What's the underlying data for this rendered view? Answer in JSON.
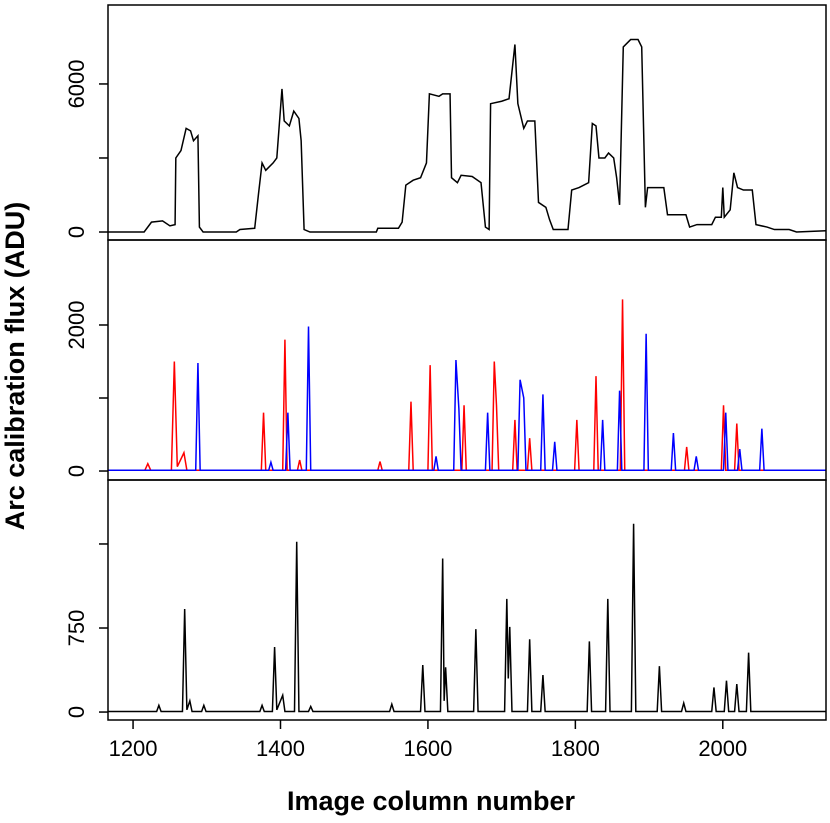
{
  "chart_data": [
    {
      "type": "line",
      "xlim": [
        1166,
        2140
      ],
      "ylim": [
        -324,
        9200
      ],
      "yticks": [
        0,
        6000
      ],
      "unlabeled_yticks": [
        3000
      ],
      "series": [
        {
          "color": "#000000",
          "x": [
            1166,
            1215,
            1225,
            1240,
            1250,
            1257,
            1258,
            1265,
            1272,
            1278,
            1282,
            1288,
            1290,
            1295,
            1340,
            1345,
            1365,
            1370,
            1375,
            1380,
            1390,
            1395,
            1402,
            1405,
            1412,
            1418,
            1425,
            1428,
            1432,
            1440,
            1530,
            1532,
            1560,
            1565,
            1570,
            1580,
            1590,
            1598,
            1602,
            1615,
            1620,
            1630,
            1632,
            1640,
            1645,
            1660,
            1672,
            1678,
            1683,
            1685,
            1700,
            1710,
            1718,
            1722,
            1730,
            1735,
            1745,
            1750,
            1760,
            1765,
            1770,
            1790,
            1795,
            1805,
            1818,
            1823,
            1828,
            1832,
            1840,
            1845,
            1852,
            1856,
            1860,
            1865,
            1875,
            1885,
            1890,
            1895,
            1898,
            1920,
            1925,
            1950,
            1955,
            1965,
            1985,
            1990,
            1998,
            2000,
            2002,
            2010,
            2015,
            2020,
            2028,
            2040,
            2045,
            2060,
            2070,
            2090,
            2100,
            2140
          ],
          "values": [
            0,
            0,
            400,
            450,
            250,
            300,
            3000,
            3300,
            4200,
            4100,
            3700,
            3900,
            200,
            0,
            0,
            100,
            150,
            1500,
            2800,
            2500,
            2800,
            3000,
            5800,
            4500,
            4300,
            4900,
            4600,
            3700,
            100,
            0,
            0,
            150,
            150,
            400,
            1900,
            2100,
            2200,
            2800,
            5600,
            5500,
            5600,
            5600,
            2200,
            2000,
            2300,
            2250,
            2000,
            200,
            100,
            5200,
            5300,
            5400,
            7600,
            5200,
            4200,
            4500,
            4500,
            1200,
            1000,
            500,
            100,
            100,
            1700,
            1800,
            2000,
            4400,
            4300,
            3000,
            3000,
            3200,
            3000,
            2200,
            1100,
            7500,
            7800,
            7800,
            7500,
            1000,
            1800,
            1800,
            700,
            700,
            200,
            300,
            300,
            600,
            600,
            1800,
            600,
            900,
            2400,
            1800,
            1700,
            1700,
            300,
            200,
            100,
            100,
            0,
            50
          ]
        }
      ]
    },
    {
      "type": "line",
      "xlim": [
        1166,
        2140
      ],
      "ylim": [
        -123,
        3164
      ],
      "yticks": [
        0,
        2000
      ],
      "unlabeled_yticks": [
        1000
      ],
      "ylabel": "Arc calibration flux (ADU)",
      "series": [
        {
          "color": "#ff0000",
          "x": [
            1166,
            1216,
            1220,
            1224,
            1252,
            1256,
            1260,
            1269,
            1273,
            1374,
            1377,
            1380,
            1403,
            1406,
            1409,
            1423,
            1426,
            1429,
            1532,
            1535,
            1538,
            1574,
            1577,
            1580,
            1600,
            1603,
            1606,
            1646,
            1649,
            1652,
            1687,
            1690,
            1693,
            1696,
            1715,
            1718,
            1721,
            1735,
            1738,
            1741,
            1799,
            1802,
            1805,
            1825,
            1828,
            1831,
            1861,
            1864,
            1867,
            1948,
            1951,
            1954,
            1998,
            2001,
            2004,
            2016,
            2019,
            2022,
            2140
          ],
          "values": [
            10,
            10,
            100,
            10,
            10,
            1500,
            60,
            250,
            10,
            10,
            800,
            10,
            10,
            1800,
            10,
            10,
            150,
            10,
            10,
            130,
            10,
            10,
            950,
            10,
            10,
            1450,
            10,
            10,
            900,
            10,
            10,
            1500,
            900,
            10,
            10,
            700,
            10,
            10,
            450,
            10,
            10,
            700,
            10,
            10,
            1300,
            10,
            10,
            2350,
            10,
            10,
            330,
            10,
            10,
            900,
            10,
            10,
            650,
            10,
            10
          ]
        },
        {
          "color": "#0000ff",
          "x": [
            1166,
            1285,
            1288,
            1291,
            1384,
            1387,
            1390,
            1407,
            1410,
            1413,
            1435,
            1438,
            1441,
            1608,
            1611,
            1614,
            1635,
            1638,
            1642,
            1645,
            1678,
            1681,
            1684,
            1722,
            1725,
            1730,
            1733,
            1753,
            1756,
            1759,
            1769,
            1772,
            1775,
            1834,
            1837,
            1840,
            1857,
            1860,
            1863,
            1893,
            1896,
            1899,
            1930,
            1933,
            1936,
            1961,
            1964,
            1967,
            2001,
            2004,
            2007,
            2020,
            2023,
            2026,
            2050,
            2053,
            2056,
            2140
          ],
          "values": [
            10,
            10,
            1480,
            10,
            10,
            120,
            10,
            10,
            800,
            10,
            10,
            1980,
            10,
            10,
            200,
            10,
            10,
            1520,
            850,
            10,
            10,
            800,
            10,
            10,
            1250,
            1000,
            10,
            10,
            1050,
            10,
            10,
            400,
            10,
            10,
            700,
            10,
            10,
            1100,
            10,
            10,
            1880,
            10,
            10,
            520,
            10,
            10,
            200,
            10,
            10,
            800,
            10,
            10,
            300,
            10,
            10,
            580,
            10,
            10
          ]
        }
      ]
    },
    {
      "type": "line",
      "xlim": [
        1166,
        2140
      ],
      "ylim": [
        -71,
        2071
      ],
      "yticks": [
        0,
        750
      ],
      "unlabeled_yticks": [
        1500
      ],
      "xticks": [
        1200,
        1400,
        1600,
        1800,
        2000
      ],
      "xlabel": "Image column number",
      "series": [
        {
          "color": "#000000",
          "x": [
            1166,
            1232,
            1235,
            1238,
            1267,
            1270,
            1273,
            1277,
            1280,
            1293,
            1296,
            1299,
            1372,
            1375,
            1378,
            1389,
            1392,
            1395,
            1403,
            1406,
            1419,
            1422,
            1425,
            1438,
            1441,
            1444,
            1548,
            1551,
            1554,
            1590,
            1593,
            1596,
            1617,
            1620,
            1622,
            1624,
            1627,
            1662,
            1665,
            1668,
            1704,
            1707,
            1709,
            1711,
            1714,
            1735,
            1738,
            1741,
            1753,
            1756,
            1759,
            1816,
            1819,
            1822,
            1841,
            1844,
            1847,
            1876,
            1879,
            1882,
            1911,
            1914,
            1917,
            1944,
            1947,
            1950,
            1985,
            1988,
            1991,
            2002,
            2005,
            2008,
            2016,
            2019,
            2022,
            2032,
            2035,
            2038,
            2140
          ],
          "values": [
            5,
            5,
            60,
            5,
            5,
            920,
            20,
            100,
            5,
            5,
            60,
            5,
            5,
            60,
            5,
            5,
            580,
            20,
            150,
            5,
            5,
            1520,
            5,
            5,
            50,
            5,
            5,
            70,
            5,
            5,
            420,
            5,
            5,
            1370,
            100,
            400,
            5,
            5,
            740,
            5,
            5,
            1010,
            300,
            760,
            5,
            5,
            650,
            5,
            5,
            330,
            5,
            5,
            630,
            5,
            5,
            1010,
            5,
            5,
            1680,
            5,
            5,
            410,
            5,
            5,
            80,
            5,
            5,
            220,
            5,
            5,
            280,
            5,
            5,
            250,
            5,
            5,
            530,
            5,
            5
          ]
        }
      ]
    }
  ]
}
